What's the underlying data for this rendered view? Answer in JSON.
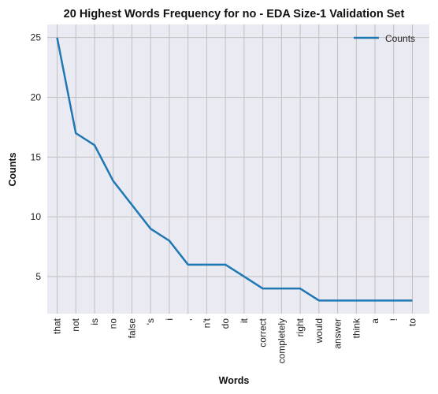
{
  "chart_data": {
    "type": "line",
    "title": "20 Highest Words Frequency for no - EDA Size-1 Validation Set",
    "xlabel": "Words",
    "ylabel": "Counts",
    "categories": [
      "that",
      "not",
      "is",
      "no",
      "false",
      "'s",
      "i",
      ",",
      "n't",
      "do",
      "it",
      "correct",
      "completely",
      "right",
      "would",
      "answer",
      "think",
      "a",
      "!",
      "to"
    ],
    "series": [
      {
        "name": "Counts",
        "values": [
          25,
          17,
          16,
          13,
          11,
          9,
          8,
          6,
          6,
          6,
          5,
          4,
          4,
          4,
          3,
          3,
          3,
          3,
          3,
          3
        ]
      }
    ],
    "yticks": [
      5,
      10,
      15,
      20,
      25
    ],
    "ylim": [
      1.9,
      26.1
    ],
    "grid": true,
    "legend": "top-right",
    "colors": {
      "line": "#1f77b4",
      "background": "#eaeaf2",
      "grid": "#c0c0c0"
    }
  }
}
